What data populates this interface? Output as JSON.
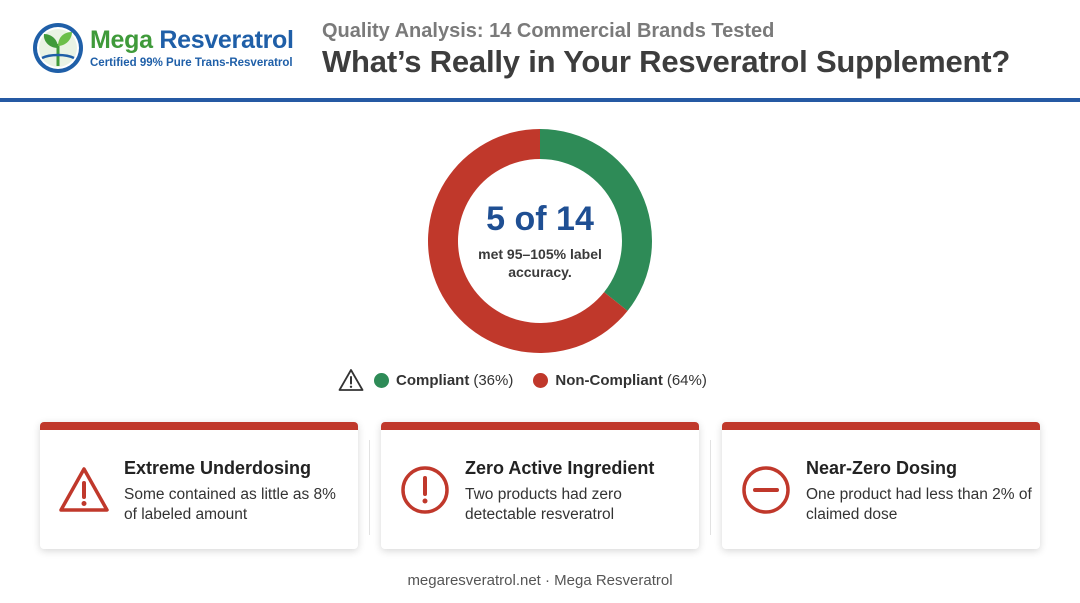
{
  "brand": {
    "name_part1": "Mega",
    "name_part2": " Resveratrol",
    "tagline": "Certified 99% Pure Trans-Resveratrol",
    "logo_icon": "sprout-leaf-icon"
  },
  "header": {
    "subtitle": "Quality Analysis: 14 Commercial Brands Tested",
    "title": "What’s Really in Your Resveratrol Supplement?"
  },
  "chart_data": {
    "type": "pie",
    "variant": "donut",
    "categories": [
      "Compliant",
      "Non-Compliant"
    ],
    "values": [
      5,
      9
    ],
    "colors": [
      "#2e8b57",
      "#c0382b"
    ],
    "center_value": "5 of 14",
    "center_caption": "met 95–105% label accuracy.",
    "legend": [
      {
        "label": "Compliant",
        "percent": "(36%)",
        "color": "#2e8b57"
      },
      {
        "label": "Non-Compliant",
        "percent": "(64%)",
        "color": "#c0382b"
      }
    ],
    "legend_placement": "bottom"
  },
  "legend_icon": "warning-triangle-icon",
  "cards": [
    {
      "icon": "warning-triangle-icon",
      "title": "Extreme Underdosing",
      "body": "Some contained as little as 8% of labeled amount"
    },
    {
      "icon": "exclamation-circle-icon",
      "title": "Zero Active Ingredient",
      "body": "Two products had zero detectable resveratrol"
    },
    {
      "icon": "minus-circle-icon",
      "title": "Near-Zero Dosing",
      "body": "One product had less than 2% of claimed dose"
    }
  ],
  "accent_color": "#c0382b",
  "rule_color": "#2559a3",
  "footer": "megaresveratrol.net · Mega Resveratrol"
}
